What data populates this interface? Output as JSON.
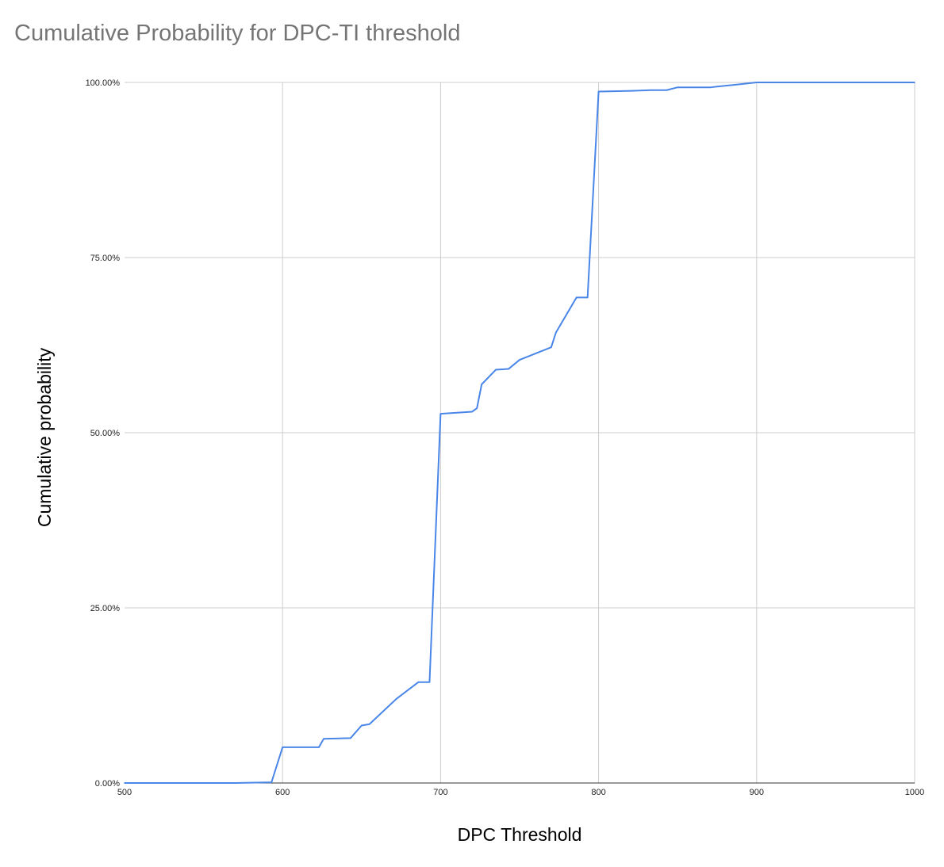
{
  "chart_data": {
    "type": "line",
    "title": "Cumulative Probability for DPC-TI threshold",
    "xlabel": "DPC Threshold",
    "ylabel": "Cumulative probability",
    "xlim": [
      500,
      1000
    ],
    "ylim": [
      0,
      100
    ],
    "x_ticks": [
      "500",
      "600",
      "700",
      "800",
      "900",
      "1000"
    ],
    "y_ticks": [
      "0.00%",
      "25.00%",
      "50.00%",
      "75.00%",
      "100.00%"
    ],
    "grid": true,
    "legend": "none",
    "series": [
      {
        "color": "#4a86e8",
        "points": [
          [
            500,
            0
          ],
          [
            570,
            0
          ],
          [
            593,
            0.1
          ],
          [
            600,
            5.1
          ],
          [
            623,
            5.1
          ],
          [
            626,
            6.3
          ],
          [
            643,
            6.4
          ],
          [
            650,
            8.2
          ],
          [
            655,
            8.4
          ],
          [
            672,
            12.0
          ],
          [
            686,
            14.4
          ],
          [
            693,
            14.4
          ],
          [
            700,
            52.7
          ],
          [
            720,
            53.0
          ],
          [
            723,
            53.5
          ],
          [
            726,
            56.9
          ],
          [
            735,
            59.0
          ],
          [
            743,
            59.1
          ],
          [
            750,
            60.4
          ],
          [
            770,
            62.2
          ],
          [
            773,
            64.3
          ],
          [
            786,
            69.3
          ],
          [
            793,
            69.3
          ],
          [
            800,
            98.7
          ],
          [
            821,
            98.8
          ],
          [
            833,
            98.9
          ],
          [
            843,
            98.9
          ],
          [
            850,
            99.3
          ],
          [
            871,
            99.3
          ],
          [
            875,
            99.4
          ],
          [
            888,
            99.7
          ],
          [
            900,
            100
          ],
          [
            1000,
            100
          ]
        ]
      }
    ]
  }
}
